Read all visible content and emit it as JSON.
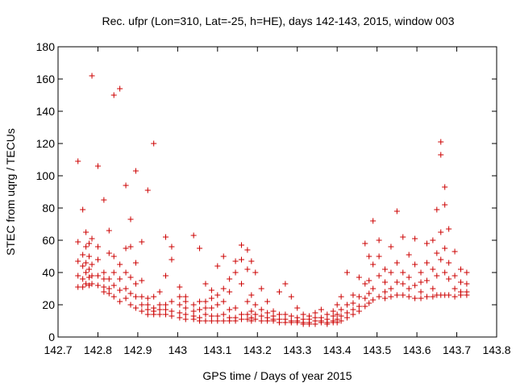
{
  "chart_data": {
    "type": "scatter",
    "title": "Rec. ufpr (Lon=310, Lat=-25, h=HE), days 142-143, 2015, window 003",
    "xlabel": "GPS time / Days of year 2015",
    "ylabel": "STEC from uqrg / TECUs",
    "xlim": [
      142.7,
      143.8
    ],
    "ylim": [
      0,
      180
    ],
    "xticks": [
      "142.7",
      "142.8",
      "142.9",
      "143",
      "143.1",
      "143.2",
      "143.3",
      "143.4",
      "143.5",
      "143.6",
      "143.7",
      "143.8"
    ],
    "yticks": [
      "0",
      "20",
      "40",
      "60",
      "80",
      "100",
      "120",
      "140",
      "160",
      "180"
    ],
    "marker": "+",
    "color": "#cc0000",
    "grid": false,
    "legend": "none",
    "series": [
      {
        "points": [
          [
            142.75,
            109
          ],
          [
            142.75,
            59
          ],
          [
            142.75,
            47
          ],
          [
            142.75,
            38
          ],
          [
            142.75,
            31
          ],
          [
            142.762,
            79
          ],
          [
            142.762,
            51
          ],
          [
            142.762,
            44
          ],
          [
            142.762,
            36
          ],
          [
            142.762,
            31
          ],
          [
            142.77,
            65
          ],
          [
            142.77,
            56
          ],
          [
            142.77,
            46
          ],
          [
            142.77,
            40
          ],
          [
            142.77,
            33
          ],
          [
            142.778,
            58
          ],
          [
            142.778,
            50
          ],
          [
            142.778,
            42
          ],
          [
            142.778,
            37
          ],
          [
            142.778,
            32
          ],
          [
            142.785,
            162
          ],
          [
            142.785,
            61
          ],
          [
            142.785,
            45
          ],
          [
            142.785,
            38
          ],
          [
            142.785,
            33
          ],
          [
            142.8,
            106
          ],
          [
            142.8,
            56
          ],
          [
            142.8,
            48
          ],
          [
            142.8,
            38
          ],
          [
            142.8,
            32
          ],
          [
            142.815,
            85
          ],
          [
            142.815,
            40
          ],
          [
            142.815,
            36
          ],
          [
            142.815,
            31
          ],
          [
            142.815,
            28
          ],
          [
            142.828,
            66
          ],
          [
            142.828,
            52
          ],
          [
            142.828,
            36
          ],
          [
            142.828,
            30
          ],
          [
            142.828,
            27
          ],
          [
            142.84,
            150
          ],
          [
            142.84,
            50
          ],
          [
            142.84,
            40
          ],
          [
            142.84,
            32
          ],
          [
            142.84,
            25
          ],
          [
            142.855,
            154
          ],
          [
            142.855,
            45
          ],
          [
            142.855,
            36
          ],
          [
            142.855,
            29
          ],
          [
            142.855,
            22
          ],
          [
            142.87,
            94
          ],
          [
            142.87,
            55
          ],
          [
            142.87,
            40
          ],
          [
            142.87,
            30
          ],
          [
            142.87,
            24
          ],
          [
            142.882,
            73
          ],
          [
            142.882,
            56
          ],
          [
            142.882,
            37
          ],
          [
            142.882,
            27
          ],
          [
            142.882,
            20
          ],
          [
            142.895,
            103
          ],
          [
            142.895,
            46
          ],
          [
            142.895,
            33
          ],
          [
            142.895,
            25
          ],
          [
            142.895,
            18
          ],
          [
            142.91,
            59
          ],
          [
            142.91,
            35
          ],
          [
            142.91,
            25
          ],
          [
            142.91,
            20
          ],
          [
            142.91,
            16
          ],
          [
            142.925,
            91
          ],
          [
            142.925,
            24
          ],
          [
            142.925,
            20
          ],
          [
            142.925,
            17
          ],
          [
            142.925,
            14
          ],
          [
            142.94,
            120
          ],
          [
            142.94,
            25
          ],
          [
            142.94,
            18
          ],
          [
            142.94,
            16
          ],
          [
            142.94,
            14
          ],
          [
            142.955,
            28
          ],
          [
            142.955,
            20
          ],
          [
            142.955,
            17
          ],
          [
            142.955,
            14
          ],
          [
            142.97,
            62
          ],
          [
            142.97,
            38
          ],
          [
            142.97,
            20
          ],
          [
            142.97,
            17
          ],
          [
            142.97,
            14
          ],
          [
            142.985,
            56
          ],
          [
            142.985,
            48
          ],
          [
            142.985,
            22
          ],
          [
            142.985,
            16
          ],
          [
            142.985,
            13
          ],
          [
            143.005,
            31
          ],
          [
            143.005,
            25
          ],
          [
            143.005,
            20
          ],
          [
            143.005,
            15
          ],
          [
            143.005,
            12
          ],
          [
            143.02,
            25
          ],
          [
            143.02,
            22
          ],
          [
            143.02,
            18
          ],
          [
            143.02,
            14
          ],
          [
            143.02,
            11
          ],
          [
            143.04,
            63
          ],
          [
            143.04,
            20
          ],
          [
            143.04,
            16
          ],
          [
            143.04,
            13
          ],
          [
            143.04,
            11
          ],
          [
            143.055,
            55
          ],
          [
            143.055,
            22
          ],
          [
            143.055,
            17
          ],
          [
            143.055,
            12
          ],
          [
            143.055,
            10
          ],
          [
            143.07,
            33
          ],
          [
            143.07,
            22
          ],
          [
            143.07,
            18
          ],
          [
            143.07,
            14
          ],
          [
            143.07,
            10
          ],
          [
            143.085,
            29
          ],
          [
            143.085,
            24
          ],
          [
            143.085,
            18
          ],
          [
            143.085,
            13
          ],
          [
            143.085,
            10
          ],
          [
            143.1,
            44
          ],
          [
            143.1,
            26
          ],
          [
            143.1,
            20
          ],
          [
            143.1,
            13
          ],
          [
            143.1,
            10
          ],
          [
            143.115,
            50
          ],
          [
            143.115,
            30
          ],
          [
            143.115,
            22
          ],
          [
            143.115,
            14
          ],
          [
            143.115,
            10
          ],
          [
            143.13,
            36
          ],
          [
            143.13,
            28
          ],
          [
            143.13,
            17
          ],
          [
            143.13,
            12
          ],
          [
            143.13,
            10
          ],
          [
            143.145,
            47
          ],
          [
            143.145,
            40
          ],
          [
            143.145,
            18
          ],
          [
            143.145,
            12
          ],
          [
            143.145,
            10
          ],
          [
            143.16,
            57
          ],
          [
            143.16,
            48
          ],
          [
            143.16,
            33
          ],
          [
            143.16,
            14
          ],
          [
            143.16,
            11
          ],
          [
            143.175,
            54
          ],
          [
            143.175,
            42
          ],
          [
            143.175,
            22
          ],
          [
            143.175,
            14
          ],
          [
            143.175,
            11
          ],
          [
            143.185,
            47
          ],
          [
            143.185,
            26
          ],
          [
            143.185,
            16
          ],
          [
            143.185,
            12
          ],
          [
            143.185,
            10
          ],
          [
            143.195,
            40
          ],
          [
            143.195,
            20
          ],
          [
            143.195,
            14
          ],
          [
            143.195,
            11
          ],
          [
            143.21,
            30
          ],
          [
            143.21,
            17
          ],
          [
            143.21,
            13
          ],
          [
            143.21,
            10
          ],
          [
            143.225,
            22
          ],
          [
            143.225,
            15
          ],
          [
            143.225,
            12
          ],
          [
            143.225,
            10
          ],
          [
            143.24,
            16
          ],
          [
            143.24,
            13
          ],
          [
            143.24,
            11
          ],
          [
            143.24,
            10
          ],
          [
            143.255,
            28
          ],
          [
            143.255,
            14
          ],
          [
            143.255,
            11
          ],
          [
            143.255,
            9
          ],
          [
            143.27,
            33
          ],
          [
            143.27,
            14
          ],
          [
            143.27,
            11
          ],
          [
            143.27,
            9
          ],
          [
            143.285,
            25
          ],
          [
            143.285,
            13
          ],
          [
            143.285,
            10
          ],
          [
            143.285,
            9
          ],
          [
            143.3,
            18
          ],
          [
            143.3,
            12
          ],
          [
            143.3,
            10
          ],
          [
            143.3,
            9
          ],
          [
            143.315,
            14
          ],
          [
            143.315,
            11
          ],
          [
            143.315,
            9
          ],
          [
            143.315,
            8
          ],
          [
            143.33,
            13
          ],
          [
            143.33,
            11
          ],
          [
            143.33,
            9
          ],
          [
            143.33,
            8
          ],
          [
            143.345,
            15
          ],
          [
            143.345,
            12
          ],
          [
            143.345,
            10
          ],
          [
            143.345,
            8
          ],
          [
            143.36,
            17
          ],
          [
            143.36,
            12
          ],
          [
            143.36,
            10
          ],
          [
            143.36,
            9
          ],
          [
            143.375,
            14
          ],
          [
            143.375,
            11
          ],
          [
            143.375,
            9
          ],
          [
            143.375,
            8
          ],
          [
            143.39,
            16
          ],
          [
            143.39,
            13
          ],
          [
            143.39,
            10
          ],
          [
            143.39,
            9
          ],
          [
            143.4,
            20
          ],
          [
            143.4,
            14
          ],
          [
            143.4,
            11
          ],
          [
            143.4,
            9
          ],
          [
            143.41,
            25
          ],
          [
            143.41,
            17
          ],
          [
            143.41,
            13
          ],
          [
            143.41,
            10
          ],
          [
            143.425,
            40
          ],
          [
            143.425,
            20
          ],
          [
            143.425,
            15
          ],
          [
            143.425,
            12
          ],
          [
            143.44,
            26
          ],
          [
            143.44,
            21
          ],
          [
            143.44,
            17
          ],
          [
            143.44,
            14
          ],
          [
            143.455,
            37
          ],
          [
            143.455,
            25
          ],
          [
            143.455,
            19
          ],
          [
            143.455,
            16
          ],
          [
            143.47,
            58
          ],
          [
            143.47,
            33
          ],
          [
            143.47,
            24
          ],
          [
            143.47,
            19
          ],
          [
            143.48,
            50
          ],
          [
            143.48,
            35
          ],
          [
            143.48,
            27
          ],
          [
            143.48,
            21
          ],
          [
            143.49,
            72
          ],
          [
            143.49,
            45
          ],
          [
            143.49,
            30
          ],
          [
            143.49,
            23
          ],
          [
            143.505,
            60
          ],
          [
            143.505,
            50
          ],
          [
            143.505,
            38
          ],
          [
            143.505,
            25
          ],
          [
            143.52,
            42
          ],
          [
            143.52,
            34
          ],
          [
            143.52,
            28
          ],
          [
            143.52,
            24
          ],
          [
            143.535,
            56
          ],
          [
            143.535,
            40
          ],
          [
            143.535,
            30
          ],
          [
            143.535,
            25
          ],
          [
            143.55,
            78
          ],
          [
            143.55,
            46
          ],
          [
            143.55,
            34
          ],
          [
            143.55,
            26
          ],
          [
            143.565,
            62
          ],
          [
            143.565,
            40
          ],
          [
            143.565,
            33
          ],
          [
            143.565,
            26
          ],
          [
            143.58,
            51
          ],
          [
            143.58,
            37
          ],
          [
            143.58,
            30
          ],
          [
            143.58,
            25
          ],
          [
            143.595,
            61
          ],
          [
            143.595,
            45
          ],
          [
            143.595,
            32
          ],
          [
            143.595,
            24
          ],
          [
            143.61,
            40
          ],
          [
            143.61,
            34
          ],
          [
            143.61,
            28
          ],
          [
            143.61,
            24
          ],
          [
            143.625,
            58
          ],
          [
            143.625,
            46
          ],
          [
            143.625,
            35
          ],
          [
            143.625,
            25
          ],
          [
            143.64,
            60
          ],
          [
            143.64,
            42
          ],
          [
            143.64,
            30
          ],
          [
            143.64,
            25
          ],
          [
            143.65,
            79
          ],
          [
            143.65,
            52
          ],
          [
            143.65,
            38
          ],
          [
            143.65,
            26
          ],
          [
            143.66,
            121
          ],
          [
            143.66,
            113
          ],
          [
            143.66,
            65
          ],
          [
            143.66,
            48
          ],
          [
            143.66,
            26
          ],
          [
            143.67,
            93
          ],
          [
            143.67,
            82
          ],
          [
            143.67,
            55
          ],
          [
            143.67,
            40
          ],
          [
            143.67,
            26
          ],
          [
            143.68,
            67
          ],
          [
            143.68,
            46
          ],
          [
            143.68,
            36
          ],
          [
            143.68,
            26
          ],
          [
            143.695,
            53
          ],
          [
            143.695,
            38
          ],
          [
            143.695,
            30
          ],
          [
            143.695,
            25
          ],
          [
            143.71,
            42
          ],
          [
            143.71,
            34
          ],
          [
            143.71,
            28
          ],
          [
            143.71,
            26
          ],
          [
            143.725,
            40
          ],
          [
            143.725,
            33
          ],
          [
            143.725,
            28
          ],
          [
            143.725,
            26
          ]
        ]
      }
    ]
  }
}
